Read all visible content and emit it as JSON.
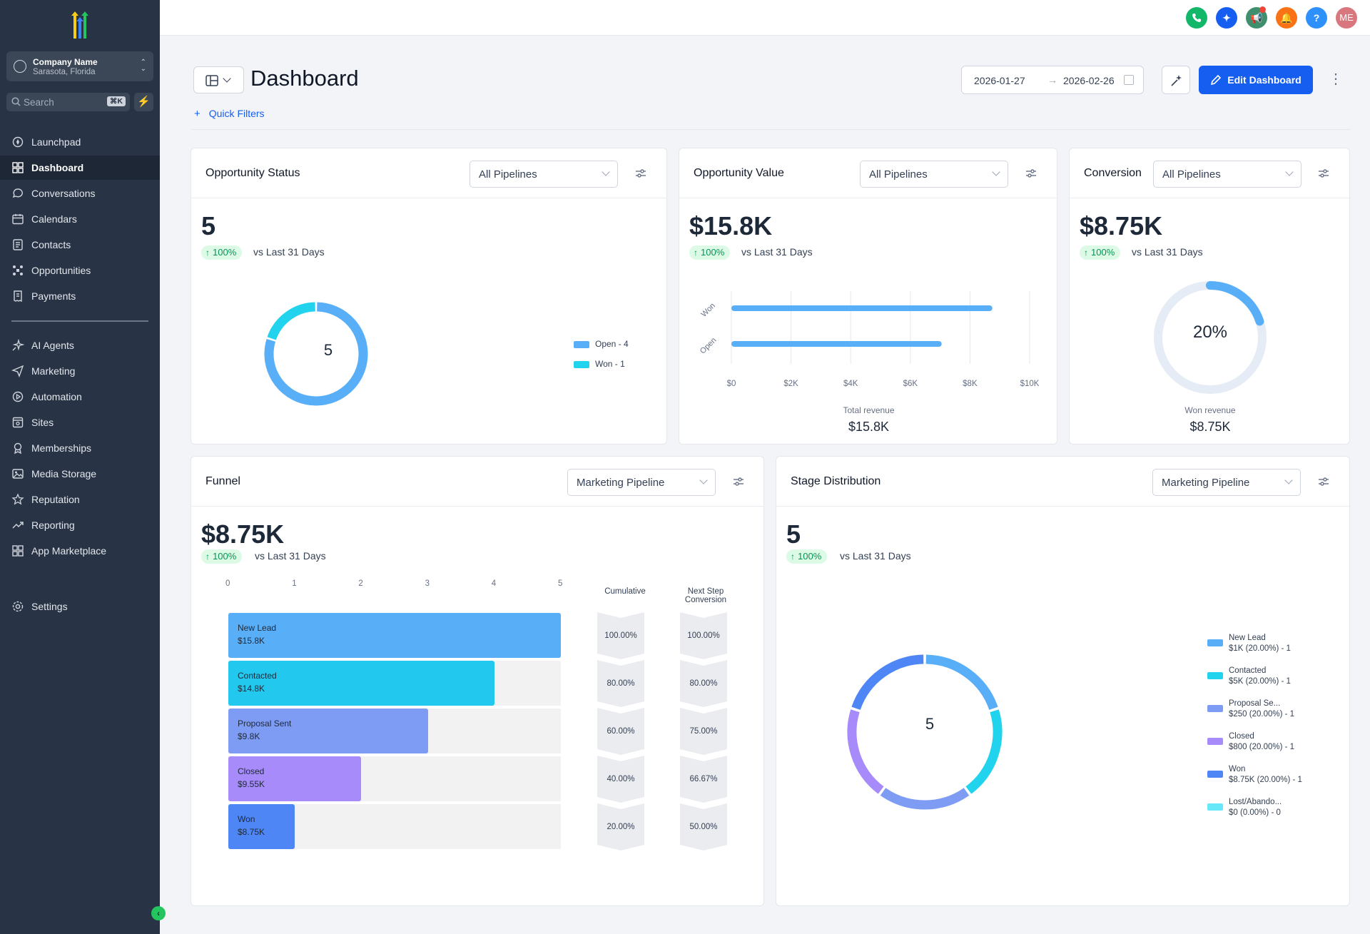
{
  "sidebar": {
    "company_name": "Company Name",
    "company_location": "Sarasota, Florida",
    "search_placeholder": "Search",
    "search_shortcut": "⌘K",
    "items_main": [
      {
        "label": "Launchpad",
        "icon": "rocket-icon"
      },
      {
        "label": "Dashboard",
        "icon": "grid-icon",
        "active": true
      },
      {
        "label": "Conversations",
        "icon": "chat-bubble-icon"
      },
      {
        "label": "Calendars",
        "icon": "calendar-icon"
      },
      {
        "label": "Contacts",
        "icon": "contacts-icon"
      },
      {
        "label": "Opportunities",
        "icon": "opportunities-icon"
      },
      {
        "label": "Payments",
        "icon": "receipt-icon"
      }
    ],
    "items_secondary": [
      {
        "label": "AI Agents",
        "icon": "sparkle-icon"
      },
      {
        "label": "Marketing",
        "icon": "send-icon"
      },
      {
        "label": "Automation",
        "icon": "play-circle-icon"
      },
      {
        "label": "Sites",
        "icon": "sites-icon"
      },
      {
        "label": "Memberships",
        "icon": "badge-icon"
      },
      {
        "label": "Media Storage",
        "icon": "image-icon"
      },
      {
        "label": "Reputation",
        "icon": "star-icon"
      },
      {
        "label": "Reporting",
        "icon": "trend-icon"
      },
      {
        "label": "App Marketplace",
        "icon": "apps-icon"
      }
    ],
    "settings_label": "Settings"
  },
  "topbar": {
    "avatar_initials": "ME",
    "buttons": [
      {
        "name": "phone-button",
        "color": "#12b76a"
      },
      {
        "name": "ai-sparkle-button",
        "color": "#155eef"
      },
      {
        "name": "announcement-button",
        "color": "#3f8f6f"
      },
      {
        "name": "notifications-button",
        "color": "#f97316"
      },
      {
        "name": "help-button",
        "color": "#2e90fa"
      },
      {
        "name": "avatar-button",
        "color": "#d9777f"
      }
    ],
    "help_label": "?"
  },
  "header": {
    "title": "Dashboard",
    "quick_filters": "Quick Filters",
    "date_start": "2026-01-27",
    "date_end": "2026-02-26",
    "edit_label": "Edit Dashboard"
  },
  "colors": {
    "accent": "#155eef",
    "blue": "#59aef8",
    "cyan": "#22d3ee",
    "periwinkle": "#7f9cf5",
    "purple": "#a78bfa",
    "royal": "#4e86f5",
    "lightcyan": "#67e8f9",
    "positive": "#079455"
  },
  "cards": {
    "opp_status": {
      "title": "Opportunity Status",
      "select": "All Pipelines",
      "metric": "5",
      "change": "100%",
      "vs": "vs Last 31 Days",
      "center": "5"
    },
    "opp_value": {
      "title": "Opportunity Value",
      "select": "All Pipelines",
      "metric": "$15.8K",
      "change": "100%",
      "vs": "vs Last 31 Days",
      "foot_label": "Total revenue",
      "foot_value": "$15.8K"
    },
    "conversion": {
      "title": "Conversion",
      "select": "All Pipelines",
      "metric": "$8.75K",
      "change": "100%",
      "vs": "vs Last 31 Days",
      "center": "20%",
      "foot_label": "Won revenue",
      "foot_value": "$8.75K"
    },
    "funnel": {
      "title": "Funnel",
      "select": "Marketing Pipeline",
      "metric": "$8.75K",
      "change": "100%",
      "vs": "vs Last 31 Days",
      "cumulative_header": "Cumulative",
      "next_step_header_1": "Next Step",
      "next_step_header_2": "Conversion"
    },
    "stage": {
      "title": "Stage Distribution",
      "select": "Marketing Pipeline",
      "metric": "5",
      "change": "100%",
      "vs": "vs Last 31 Days",
      "center": "5"
    }
  },
  "chart_data": [
    {
      "type": "pie",
      "chart": "opportunity-status-donut",
      "slices": [
        {
          "label": "Open - 4",
          "value": 4,
          "color": "#59aef8"
        },
        {
          "label": "Won - 1",
          "value": 1,
          "color": "#22d3ee"
        }
      ],
      "legend": "right"
    },
    {
      "type": "bar",
      "orientation": "horizontal",
      "chart": "opportunity-value-bars",
      "categories": [
        "Won",
        "Open"
      ],
      "values": [
        8750,
        7050
      ],
      "xlim": [
        0,
        10000
      ],
      "x_ticks": [
        "$0",
        "$2K",
        "$4K",
        "$6K",
        "$8K",
        "$10K"
      ],
      "grid": true,
      "color": "#59aef8"
    },
    {
      "type": "pie",
      "chart": "conversion-gauge",
      "value": 20,
      "color": "#59aef8",
      "track_color": "#e6ecf5"
    },
    {
      "type": "bar",
      "chart": "funnel",
      "orientation": "horizontal",
      "x_ticks": [
        "0",
        "1",
        "2",
        "3",
        "4",
        "5"
      ],
      "xlim": [
        0,
        5
      ],
      "stages": [
        {
          "name": "New Lead",
          "amount": "$15.8K",
          "count": 5,
          "cumulative": "100.00%",
          "next_step": "100.00%",
          "color": "#59aef8"
        },
        {
          "name": "Contacted",
          "amount": "$14.8K",
          "count": 4,
          "cumulative": "80.00%",
          "next_step": "80.00%",
          "color": "#22c8ee"
        },
        {
          "name": "Proposal Sent",
          "amount": "$9.8K",
          "count": 3,
          "cumulative": "60.00%",
          "next_step": "75.00%",
          "color": "#7f9cf5"
        },
        {
          "name": "Closed",
          "amount": "$9.55K",
          "count": 2,
          "cumulative": "40.00%",
          "next_step": "66.67%",
          "color": "#a78bfa"
        },
        {
          "name": "Won",
          "amount": "$8.75K",
          "count": 1,
          "cumulative": "20.00%",
          "next_step": "50.00%",
          "color": "#4e86f5"
        }
      ]
    },
    {
      "type": "pie",
      "chart": "stage-distribution-donut",
      "slices": [
        {
          "name": "New Lead",
          "detail": "$1K (20.00%) - 1",
          "value": 1,
          "color": "#59aef8"
        },
        {
          "name": "Contacted",
          "detail": "$5K (20.00%) - 1",
          "value": 1,
          "color": "#22d3ee"
        },
        {
          "name": "Proposal Se...",
          "detail": "$250 (20.00%) - 1",
          "value": 1,
          "color": "#7f9cf5"
        },
        {
          "name": "Closed",
          "detail": "$800 (20.00%) - 1",
          "value": 1,
          "color": "#a78bfa"
        },
        {
          "name": "Won",
          "detail": "$8.75K (20.00%) - 1",
          "value": 1,
          "color": "#4e86f5"
        },
        {
          "name": "Lost/Abando...",
          "detail": "$0 (0.00%) - 0",
          "value": 0,
          "color": "#67e8f9"
        }
      ],
      "legend": "right"
    }
  ]
}
